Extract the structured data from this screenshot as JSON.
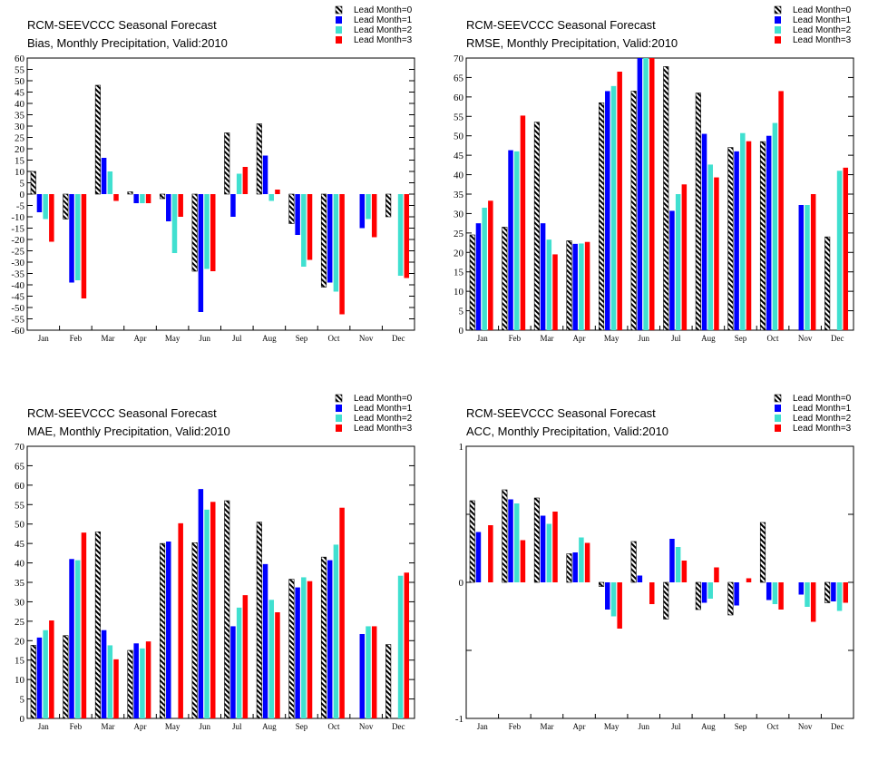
{
  "legend": [
    {
      "label": "Lead Month=0",
      "color": "hatch"
    },
    {
      "label": "Lead Month=1",
      "color": "#0000ff"
    },
    {
      "label": "Lead Month=2",
      "color": "#40e0d0"
    },
    {
      "label": "Lead Month=3",
      "color": "#ff0000"
    }
  ],
  "chart_data": [
    {
      "type": "bar",
      "title": "RCM-SEEVCCC Seasonal Forecast",
      "subtitle": "Bias, Monthly Precipitation, Valid:2010",
      "categories": [
        "Jan",
        "Feb",
        "Mar",
        "Apr",
        "May",
        "Jun",
        "Jul",
        "Aug",
        "Sep",
        "Oct",
        "Nov",
        "Dec"
      ],
      "ylim": [
        -60,
        60
      ],
      "yticks": [
        60,
        55,
        50,
        45,
        40,
        35,
        30,
        25,
        20,
        15,
        10,
        5,
        0,
        -5,
        -10,
        -15,
        -20,
        -25,
        -30,
        -35,
        -40,
        -45,
        -50,
        -55,
        -60
      ],
      "series": [
        {
          "name": "Lead Month=0",
          "values": [
            10,
            -11,
            48,
            1,
            -2,
            -34,
            27,
            31,
            -13,
            -41,
            0,
            -10
          ]
        },
        {
          "name": "Lead Month=1",
          "values": [
            -8,
            -39,
            16,
            -4,
            -12,
            -52,
            -10,
            17,
            -18,
            -39,
            -15,
            0
          ]
        },
        {
          "name": "Lead Month=2",
          "values": [
            -11,
            -38,
            10,
            -4,
            -26,
            -33,
            9,
            -3,
            -32,
            -43,
            -11,
            -36
          ]
        },
        {
          "name": "Lead Month=3",
          "values": [
            -21,
            -46,
            -3,
            -4,
            -10,
            -34,
            12,
            2,
            -29,
            -53,
            -19,
            -37
          ]
        }
      ]
    },
    {
      "type": "bar",
      "title": "RCM-SEEVCCC Seasonal Forecast",
      "subtitle": "RMSE, Monthly Precipitation, Valid:2010",
      "categories": [
        "Jan",
        "Feb",
        "Mar",
        "Apr",
        "May",
        "Jun",
        "Jul",
        "Aug",
        "Sep",
        "Oct",
        "Nov",
        "Dec"
      ],
      "ylim": [
        0,
        70
      ],
      "yticks": [
        70,
        65,
        60,
        55,
        50,
        45,
        40,
        35,
        30,
        25,
        20,
        15,
        10,
        5,
        0
      ],
      "series": [
        {
          "name": "Lead Month=0",
          "values": [
            24.5,
            26.5,
            53.5,
            23,
            58.5,
            61.5,
            67.8,
            61,
            47,
            48.5,
            0,
            24
          ]
        },
        {
          "name": "Lead Month=1",
          "values": [
            27.5,
            46.3,
            27.5,
            22.2,
            61.5,
            70,
            30.7,
            50.5,
            46,
            50,
            32.2,
            0
          ]
        },
        {
          "name": "Lead Month=2",
          "values": [
            31.5,
            46,
            23.3,
            22.3,
            62.8,
            70,
            35,
            42.6,
            50.7,
            53.3,
            32.2,
            41
          ]
        },
        {
          "name": "Lead Month=3",
          "values": [
            33.3,
            55.2,
            19.5,
            22.7,
            66.5,
            70,
            37.5,
            39.3,
            48.6,
            61.5,
            35,
            41.8
          ]
        }
      ]
    },
    {
      "type": "bar",
      "title": "RCM-SEEVCCC Seasonal Forecast",
      "subtitle": "MAE, Monthly Precipitation, Valid:2010",
      "categories": [
        "Jan",
        "Feb",
        "Mar",
        "Apr",
        "May",
        "Jun",
        "Jul",
        "Aug",
        "Sep",
        "Oct",
        "Nov",
        "Dec"
      ],
      "ylim": [
        0,
        70
      ],
      "yticks": [
        70,
        65,
        60,
        55,
        50,
        45,
        40,
        35,
        30,
        25,
        20,
        15,
        10,
        5,
        0
      ],
      "series": [
        {
          "name": "Lead Month=0",
          "values": [
            18.8,
            21.3,
            48,
            17.5,
            45,
            45.2,
            56,
            50.5,
            35.8,
            41.5,
            0,
            19
          ]
        },
        {
          "name": "Lead Month=1",
          "values": [
            20.8,
            41,
            22.7,
            19.3,
            45.5,
            59,
            23.7,
            39.7,
            33.7,
            40.7,
            21.7,
            0
          ]
        },
        {
          "name": "Lead Month=2",
          "values": [
            22.7,
            40.7,
            18.8,
            18,
            0,
            53.7,
            28.5,
            30.5,
            36.3,
            44.7,
            23.7,
            36.7
          ]
        },
        {
          "name": "Lead Month=3",
          "values": [
            25.2,
            47.8,
            15.2,
            19.8,
            50.2,
            55.7,
            31.7,
            27.3,
            35.3,
            54.2,
            23.7,
            37.5
          ]
        }
      ]
    },
    {
      "type": "bar",
      "title": "RCM-SEEVCCC Seasonal Forecast",
      "subtitle": "ACC, Monthly Precipitation, Valid:2010",
      "categories": [
        "Jan",
        "Feb",
        "Mar",
        "Apr",
        "May",
        "Jun",
        "Jul",
        "Aug",
        "Sep",
        "Oct",
        "Nov",
        "Dec"
      ],
      "ylim": [
        -1,
        1
      ],
      "yticks": [
        1,
        0,
        -1
      ],
      "minor_yticks": [
        0.5,
        -0.5
      ],
      "series": [
        {
          "name": "Lead Month=0",
          "values": [
            0.6,
            0.68,
            0.62,
            0.21,
            -0.03,
            0.3,
            -0.27,
            -0.2,
            -0.24,
            0.44,
            0,
            -0.15
          ]
        },
        {
          "name": "Lead Month=1",
          "values": [
            0.37,
            0.61,
            0.49,
            0.22,
            -0.2,
            0.05,
            0.32,
            -0.15,
            -0.17,
            -0.13,
            -0.09,
            -0.14
          ]
        },
        {
          "name": "Lead Month=2",
          "values": [
            0,
            0.58,
            0.43,
            0.33,
            -0.25,
            0,
            0.26,
            -0.12,
            0,
            -0.16,
            -0.18,
            -0.21
          ]
        },
        {
          "name": "Lead Month=3",
          "values": [
            0.42,
            0.31,
            0.52,
            0.29,
            -0.34,
            -0.16,
            0.16,
            0.11,
            0.03,
            -0.2,
            -0.29,
            -0.15
          ]
        }
      ]
    }
  ]
}
